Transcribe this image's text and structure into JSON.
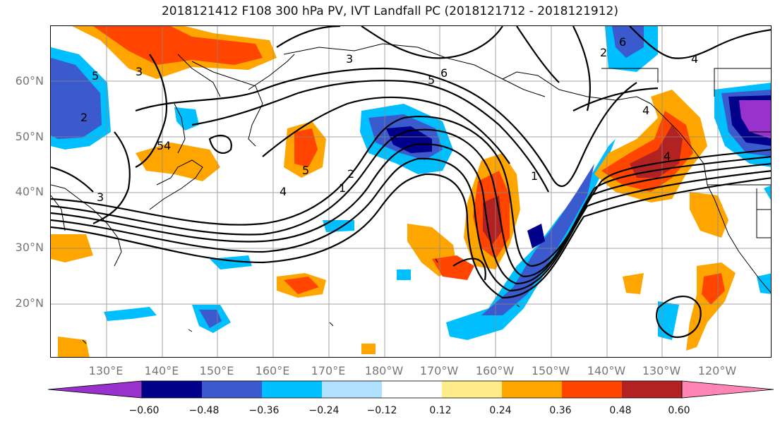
{
  "title": "2018121412 F108 300 hPa PV, IVT Landfall PC (2018121712 - 2018121912)",
  "lat_labels": [
    "60°N",
    "50°N",
    "40°N",
    "30°N",
    "20°N"
  ],
  "lon_labels": [
    "130°E",
    "140°E",
    "150°E",
    "160°E",
    "170°E",
    "180°W",
    "170°W",
    "160°W",
    "150°W",
    "140°W",
    "130°W",
    "120°W"
  ],
  "colorbar": {
    "ticks": [
      "−0.60",
      "−0.48",
      "−0.36",
      "−0.24",
      "−0.12",
      "0.12",
      "0.24",
      "0.36",
      "0.48",
      "0.60"
    ],
    "colors": {
      "below_-0.60": "#9932cc",
      "-0.60_-0.48": "#00008b",
      "-0.48_-0.36": "#3a5acd",
      "-0.36_-0.24": "#00bfff",
      "-0.24_-0.12": "#b0e2ff",
      "-0.12_0.12": "#ffffff",
      "0.12_0.24": "#ffec8b",
      "0.24_0.36": "#ffa500",
      "0.36_0.48": "#ff4500",
      "0.48_0.60": "#b22222",
      "above_0.60": "#ff86b4"
    }
  },
  "contour_labels": [
    "1",
    "2",
    "3",
    "4",
    "5",
    "6",
    "2",
    "4",
    "5",
    "4",
    "3",
    "5",
    "2",
    "1",
    "4",
    "4",
    "6",
    "3",
    "5"
  ]
}
